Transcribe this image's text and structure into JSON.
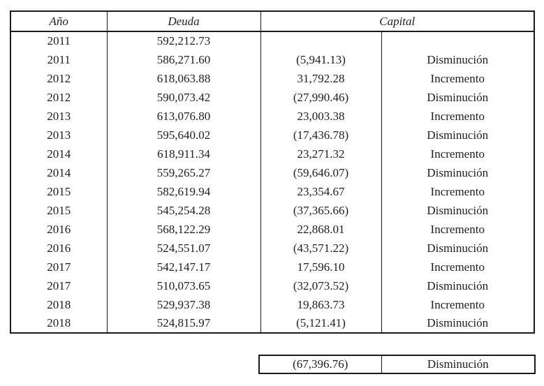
{
  "colors": {
    "text": "#1e1e20",
    "border": "#1a1a1a",
    "background": "#ffffff"
  },
  "table": {
    "headers": {
      "year": "Año",
      "debt": "Deuda",
      "capital": "Capital"
    },
    "rows": [
      {
        "year": "2011",
        "debt": "592,212.73",
        "capital_value": "",
        "capital_label": ""
      },
      {
        "year": "2011",
        "debt": "586,271.60",
        "capital_value": "(5,941.13)",
        "capital_label": "Disminución"
      },
      {
        "year": "2012",
        "debt": "618,063.88",
        "capital_value": "31,792.28",
        "capital_label": "Incremento"
      },
      {
        "year": "2012",
        "debt": "590,073.42",
        "capital_value": "(27,990.46)",
        "capital_label": "Disminución"
      },
      {
        "year": "2013",
        "debt": "613,076.80",
        "capital_value": "23,003.38",
        "capital_label": "Incremento"
      },
      {
        "year": "2013",
        "debt": "595,640.02",
        "capital_value": "(17,436.78)",
        "capital_label": "Disminución"
      },
      {
        "year": "2014",
        "debt": "618,911.34",
        "capital_value": "23,271.32",
        "capital_label": "Incremento"
      },
      {
        "year": "2014",
        "debt": "559,265.27",
        "capital_value": "(59,646.07)",
        "capital_label": "Disminución"
      },
      {
        "year": "2015",
        "debt": "582,619.94",
        "capital_value": "23,354.67",
        "capital_label": "Incremento"
      },
      {
        "year": "2015",
        "debt": "545,254.28",
        "capital_value": "(37,365.66)",
        "capital_label": "Disminución"
      },
      {
        "year": "2016",
        "debt": "568,122.29",
        "capital_value": "22,868.01",
        "capital_label": "Incremento"
      },
      {
        "year": "2016",
        "debt": "524,551.07",
        "capital_value": "(43,571.22)",
        "capital_label": "Disminución"
      },
      {
        "year": "2017",
        "debt": "542,147.17",
        "capital_value": "17,596.10",
        "capital_label": "Incremento"
      },
      {
        "year": "2017",
        "debt": "510,073.65",
        "capital_value": "(32,073.52)",
        "capital_label": "Disminución"
      },
      {
        "year": "2018",
        "debt": "529,937.38",
        "capital_value": "19,863.73",
        "capital_label": "Incremento"
      },
      {
        "year": "2018",
        "debt": "524,815.97",
        "capital_value": "(5,121.41)",
        "capital_label": "Disminución"
      }
    ],
    "summary": {
      "capital_value": "(67,396.76)",
      "capital_label": "Disminución"
    }
  }
}
